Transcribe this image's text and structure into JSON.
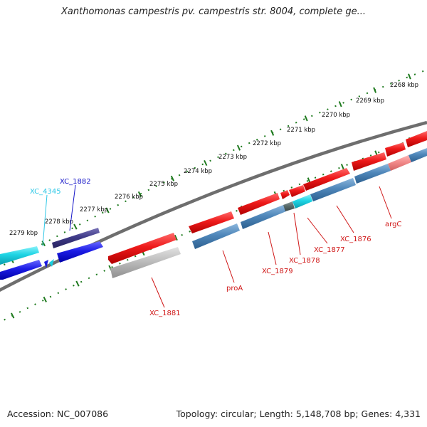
{
  "title": "Xanthomonas campestris pv. campestris str. 8004, complete ge...",
  "footer": {
    "accession": "Accession: NC_007086",
    "summary": "Topology: circular; Length: 5,148,708 bp; Genes: 4,331"
  },
  "colors": {
    "backbone": "#777777",
    "tick": "#1e7a1e",
    "red_gene": "#e8121a",
    "steel_gene": "#4a82b4",
    "cyan_gene": "#19cfe0",
    "blue_gene": "#1a1ae0",
    "navy_gene": "#3b3680",
    "grey_gene": "#b5b5b5",
    "pink_gene": "#f08a8a",
    "dark_gene": "#556b6b"
  },
  "scale": {
    "unit": "kbp",
    "labels": [
      "2279 kbp",
      "2278 kbp",
      "2277 kbp",
      "2276 kbp",
      "2275 kbp",
      "2274 kbp",
      "2273 kbp",
      "2272 kbp",
      "2271 kbp",
      "2270 kbp",
      "2269 kbp",
      "2268 kbp"
    ]
  },
  "gene_labels": [
    {
      "id": "xc4345",
      "text": "XC_4345",
      "color": "#2ec7e6"
    },
    {
      "id": "xc1882",
      "text": "XC_1882",
      "color": "#1515c8"
    },
    {
      "id": "xc1881",
      "text": "XC_1881",
      "color": "#d01818"
    },
    {
      "id": "proa",
      "text": "proA",
      "color": "#d01818"
    },
    {
      "id": "xc1879",
      "text": "XC_1879",
      "color": "#d01818"
    },
    {
      "id": "xc1878",
      "text": "XC_1878",
      "color": "#d01818"
    },
    {
      "id": "xc1877",
      "text": "XC_1877",
      "color": "#d01818"
    },
    {
      "id": "xc1876",
      "text": "XC_1876",
      "color": "#d01818"
    },
    {
      "id": "argc",
      "text": "argC",
      "color": "#d01818"
    }
  ]
}
